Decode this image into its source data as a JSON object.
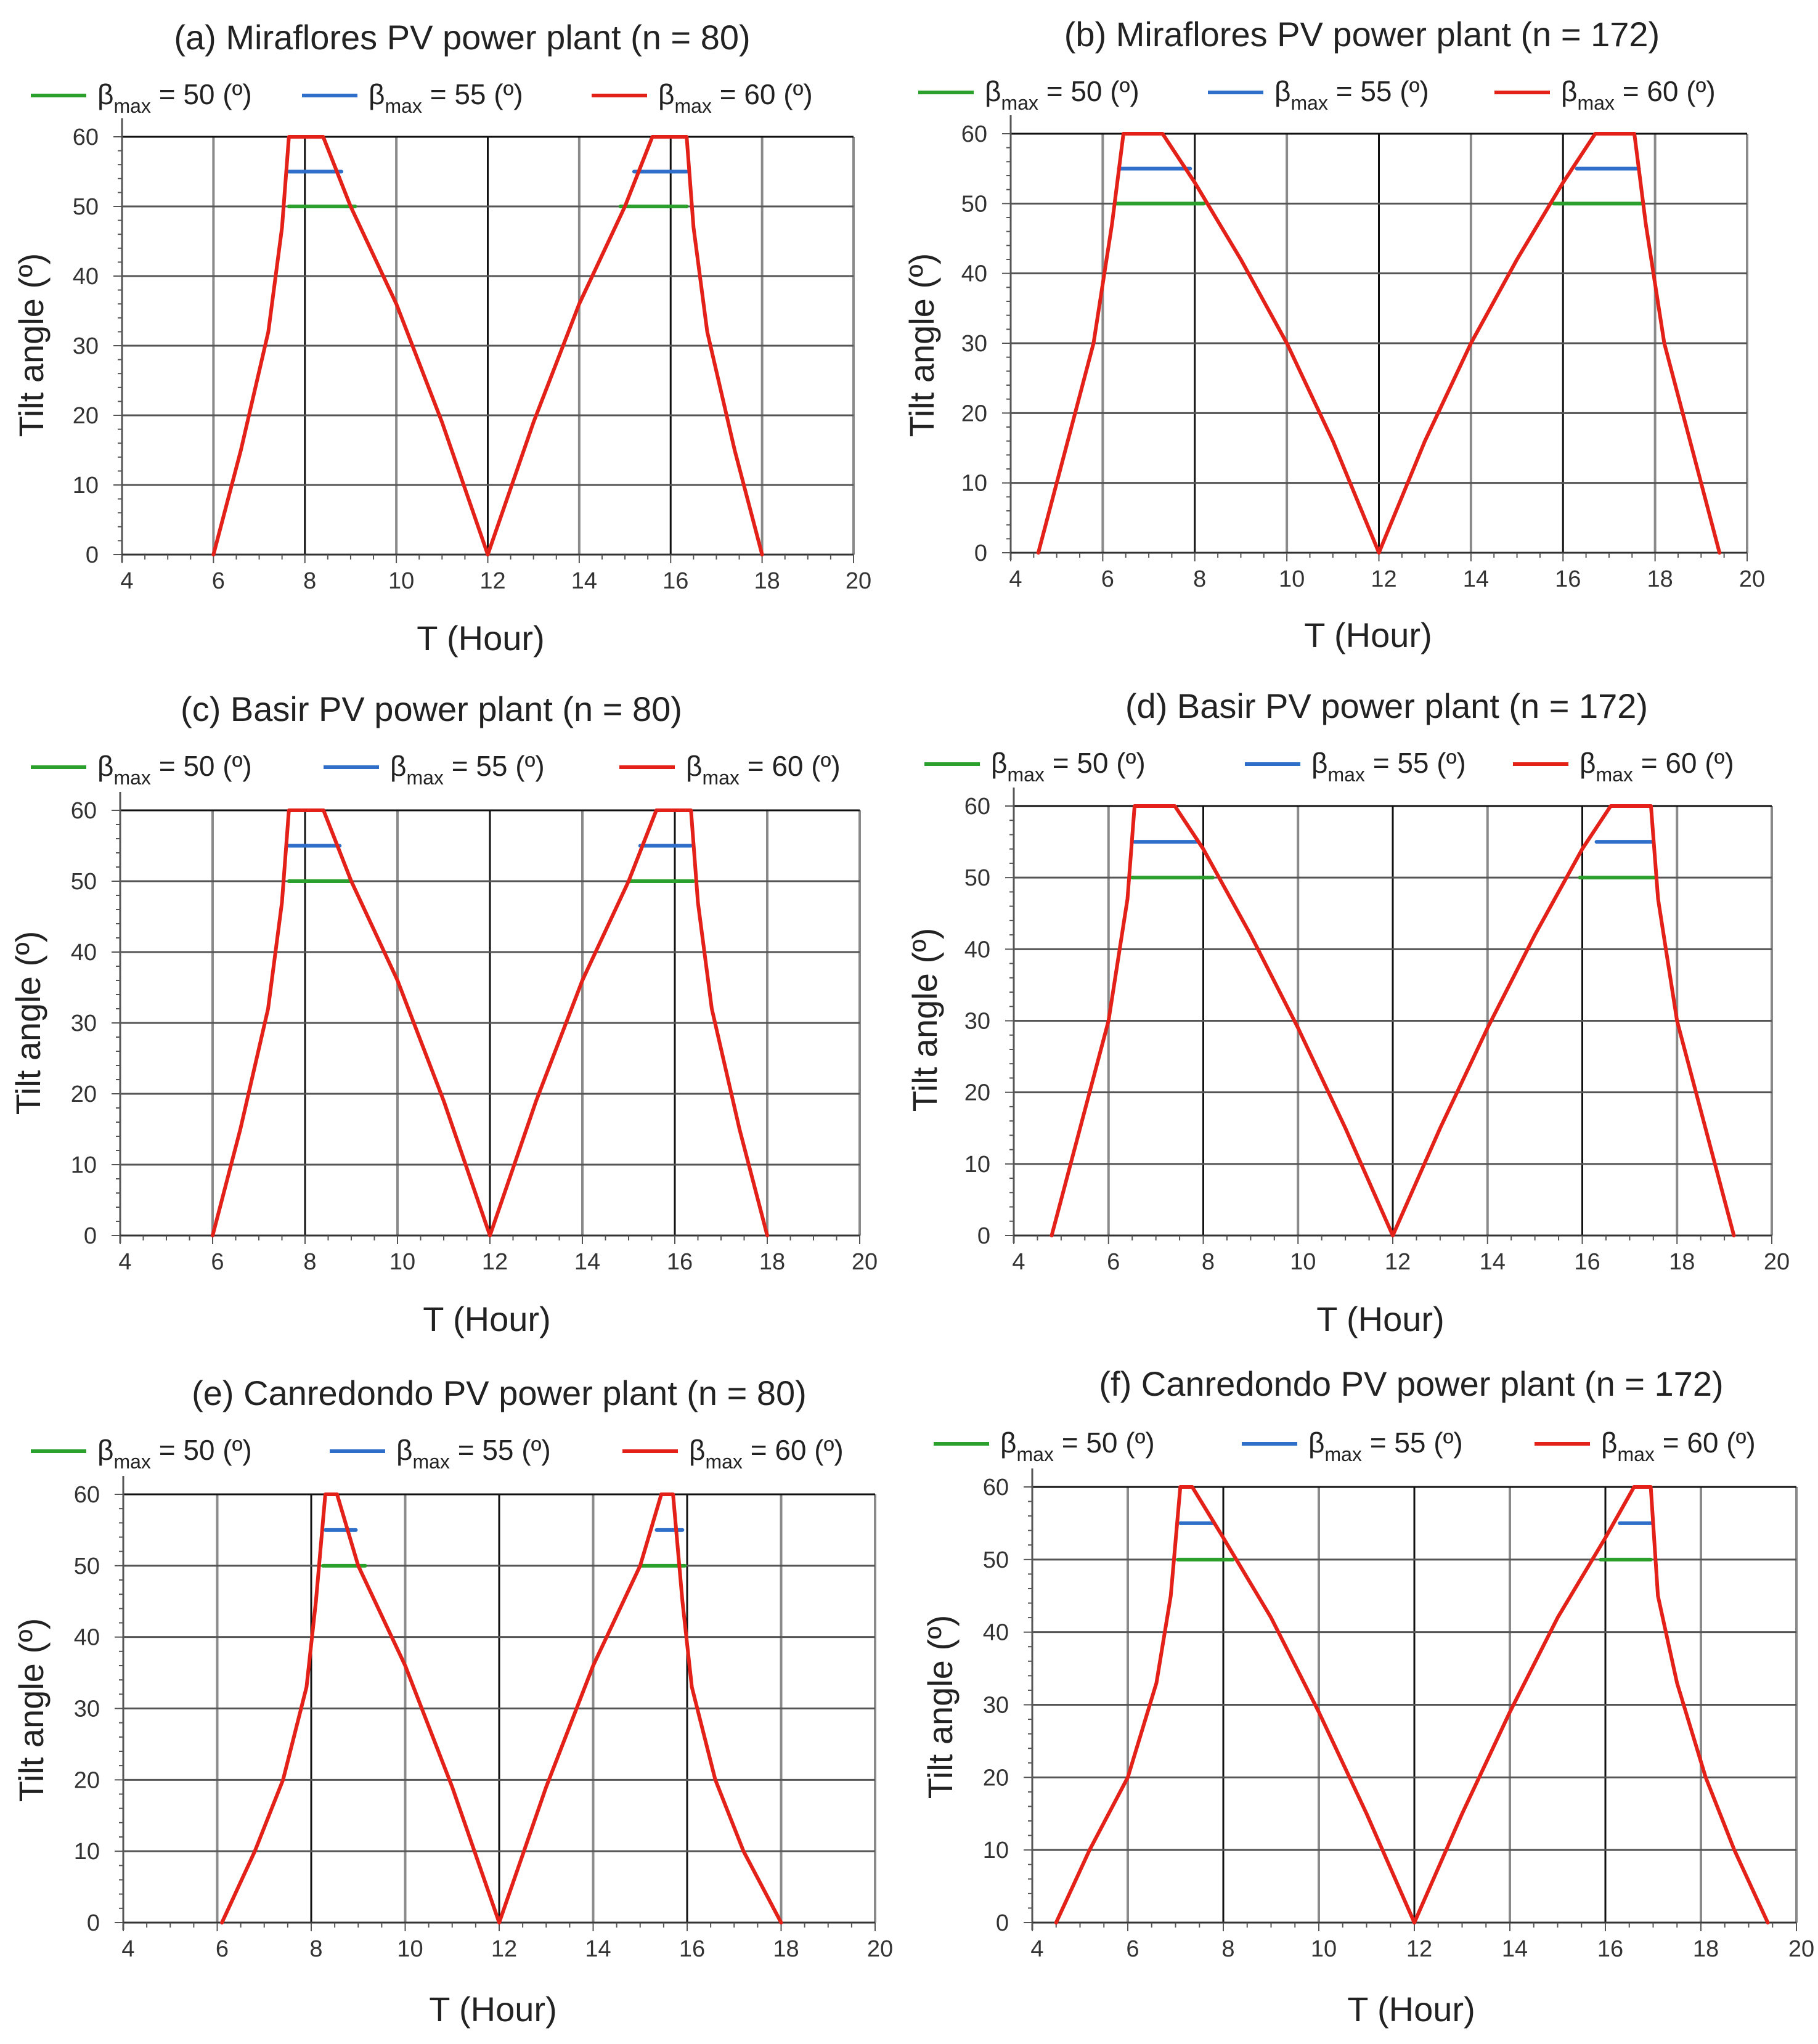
{
  "colors": {
    "beta50": "#2ca02c",
    "beta55": "#2f6fc9",
    "beta60": "#e32119",
    "grid": "#8a8a8a",
    "frame": "#111111"
  },
  "legend_items": [
    {
      "prefix": "β",
      "sub": "max",
      "rest": " = 50 (º)",
      "color_key": "beta50"
    },
    {
      "prefix": "β",
      "sub": "max",
      "rest": " = 55 (º)",
      "color_key": "beta55"
    },
    {
      "prefix": "β",
      "sub": "max",
      "rest": " = 60 (º)",
      "color_key": "beta60"
    }
  ],
  "chart_data": [
    {
      "type": "line",
      "title": "(a) Miraflores PV power plant (n = 80)",
      "xlabel": "T (Hour)",
      "ylabel": "Tilt angle (º)",
      "xlim": [
        4,
        20
      ],
      "ylim": [
        0,
        60
      ],
      "xticks": [
        4,
        6,
        8,
        10,
        12,
        14,
        16,
        18,
        20
      ],
      "yticks": [
        0,
        10,
        20,
        30,
        40,
        50,
        60
      ],
      "grid": true,
      "series": [
        {
          "name": "βmax = 60 (º)",
          "color_key": "beta60",
          "x": [
            6.0,
            6.6,
            7.2,
            7.5,
            7.65,
            8.4,
            9.0,
            10.0,
            11.0,
            12.0,
            13.0,
            14.0,
            15.0,
            15.6,
            16.35,
            16.5,
            16.8,
            17.4,
            18.0
          ],
          "y": [
            0,
            15,
            32,
            47,
            60,
            60,
            50,
            36,
            19,
            0,
            19,
            36,
            50,
            60,
            60,
            47,
            32,
            15,
            0
          ]
        },
        {
          "name": "βmax = 55 (º)",
          "color_key": "beta55",
          "x": [
            7.65,
            8.8
          ],
          "y": [
            55,
            55
          ],
          "x2": [
            15.2,
            16.35
          ],
          "y2": [
            55,
            55
          ]
        },
        {
          "name": "βmax = 50 (º)",
          "color_key": "beta50",
          "x": [
            7.65,
            9.1
          ],
          "y": [
            50,
            50
          ],
          "x2": [
            14.9,
            16.35
          ],
          "y2": [
            50,
            50
          ]
        }
      ]
    },
    {
      "type": "line",
      "title": "(b) Miraflores PV power plant (n = 172)",
      "xlabel": "T (Hour)",
      "ylabel": "Tilt angle (º)",
      "xlim": [
        4,
        20
      ],
      "ylim": [
        0,
        60
      ],
      "xticks": [
        4,
        6,
        8,
        10,
        12,
        14,
        16,
        18,
        20
      ],
      "yticks": [
        0,
        10,
        20,
        30,
        40,
        50,
        60
      ],
      "grid": true,
      "series": [
        {
          "name": "βmax = 60 (º)",
          "color_key": "beta60",
          "x": [
            4.6,
            5.2,
            5.8,
            6.2,
            6.45,
            7.3,
            8.0,
            9.0,
            10.0,
            11.0,
            12.0,
            13.0,
            14.0,
            15.0,
            16.0,
            16.7,
            17.55,
            17.8,
            18.2,
            18.8,
            19.4
          ],
          "y": [
            0,
            15,
            30,
            47,
            60,
            60,
            53,
            42,
            30,
            16,
            0,
            16,
            30,
            42,
            53,
            60,
            60,
            47,
            30,
            15,
            0
          ]
        },
        {
          "name": "βmax = 55 (º)",
          "color_key": "beta55",
          "x": [
            6.35,
            7.9
          ],
          "y": [
            55,
            55
          ],
          "x2": [
            16.3,
            17.65
          ],
          "y2": [
            55,
            55
          ]
        },
        {
          "name": "βmax = 50 (º)",
          "color_key": "beta50",
          "x": [
            6.3,
            8.2
          ],
          "y": [
            50,
            50
          ],
          "x2": [
            15.8,
            17.7
          ],
          "y2": [
            50,
            50
          ]
        }
      ]
    },
    {
      "type": "line",
      "title": "(c) Basir PV power plant (n = 80)",
      "xlabel": "T (Hour)",
      "ylabel": "Tilt angle (º)",
      "xlim": [
        4,
        20
      ],
      "ylim": [
        0,
        60
      ],
      "xticks": [
        4,
        6,
        8,
        10,
        12,
        14,
        16,
        18,
        20
      ],
      "yticks": [
        0,
        10,
        20,
        30,
        40,
        50,
        60
      ],
      "grid": true,
      "series": [
        {
          "name": "βmax = 60 (º)",
          "color_key": "beta60",
          "x": [
            6.0,
            6.6,
            7.2,
            7.5,
            7.65,
            8.4,
            9.0,
            10.0,
            11.0,
            12.0,
            13.0,
            14.0,
            15.0,
            15.6,
            16.35,
            16.5,
            16.8,
            17.4,
            18.0
          ],
          "y": [
            0,
            15,
            32,
            47,
            60,
            60,
            50,
            36,
            19,
            0,
            19,
            36,
            50,
            60,
            60,
            47,
            32,
            15,
            0
          ]
        },
        {
          "name": "βmax = 55 (º)",
          "color_key": "beta55",
          "x": [
            7.65,
            8.75
          ],
          "y": [
            55,
            55
          ],
          "x2": [
            15.25,
            16.35
          ],
          "y2": [
            55,
            55
          ]
        },
        {
          "name": "βmax = 50 (º)",
          "color_key": "beta50",
          "x": [
            7.65,
            9.0
          ],
          "y": [
            50,
            50
          ],
          "x2": [
            15.0,
            16.4
          ],
          "y2": [
            50,
            50
          ]
        }
      ]
    },
    {
      "type": "line",
      "title": "(d) Basir PV power plant (n = 172)",
      "xlabel": "T (Hour)",
      "ylabel": "Tilt angle (º)",
      "xlim": [
        4,
        20
      ],
      "ylim": [
        0,
        60
      ],
      "xticks": [
        4,
        6,
        8,
        10,
        12,
        14,
        16,
        18,
        20
      ],
      "yticks": [
        0,
        10,
        20,
        30,
        40,
        50,
        60
      ],
      "grid": true,
      "series": [
        {
          "name": "βmax = 60 (º)",
          "color_key": "beta60",
          "x": [
            4.8,
            5.4,
            6.0,
            6.4,
            6.55,
            7.4,
            8.0,
            9.0,
            10.0,
            11.0,
            12.0,
            13.0,
            14.0,
            15.0,
            16.0,
            16.6,
            17.45,
            17.6,
            18.0,
            18.6,
            19.2
          ],
          "y": [
            0,
            15,
            30,
            47,
            60,
            60,
            54,
            42,
            29,
            15,
            0,
            15,
            29,
            42,
            54,
            60,
            60,
            47,
            30,
            15,
            0
          ]
        },
        {
          "name": "βmax = 55 (º)",
          "color_key": "beta55",
          "x": [
            6.55,
            7.9
          ],
          "y": [
            55,
            55
          ],
          "x2": [
            16.3,
            17.5
          ],
          "y2": [
            55,
            55
          ]
        },
        {
          "name": "βmax = 50 (º)",
          "color_key": "beta50",
          "x": [
            6.5,
            8.2
          ],
          "y": [
            50,
            50
          ],
          "x2": [
            15.95,
            17.55
          ],
          "y2": [
            50,
            50
          ]
        }
      ]
    },
    {
      "type": "line",
      "title": "(e) Canredondo PV power plant (n = 80)",
      "xlabel": "T (Hour)",
      "ylabel": "Tilt angle (º)",
      "xlim": [
        4,
        20
      ],
      "ylim": [
        0,
        60
      ],
      "xticks": [
        4,
        6,
        8,
        10,
        12,
        14,
        16,
        18,
        20
      ],
      "yticks": [
        0,
        10,
        20,
        30,
        40,
        50,
        60
      ],
      "grid": true,
      "series": [
        {
          "name": "βmax = 60 (º)",
          "color_key": "beta60",
          "x": [
            6.1,
            6.8,
            7.4,
            7.9,
            8.1,
            8.3,
            8.55,
            9.0,
            10.0,
            11.0,
            12.0,
            13.0,
            14.0,
            15.0,
            15.45,
            15.7,
            15.9,
            16.1,
            16.6,
            17.2,
            18.0
          ],
          "y": [
            0,
            10,
            20,
            33,
            45,
            60,
            60,
            50,
            36,
            19,
            0,
            19,
            36,
            50,
            60,
            60,
            45,
            33,
            20,
            10,
            0
          ]
        },
        {
          "name": "βmax = 55 (º)",
          "color_key": "beta55",
          "x": [
            8.3,
            8.95
          ],
          "y": [
            55,
            55
          ],
          "x2": [
            15.35,
            15.9
          ],
          "y2": [
            55,
            55
          ]
        },
        {
          "name": "βmax = 50 (º)",
          "color_key": "beta50",
          "x": [
            8.25,
            9.15
          ],
          "y": [
            50,
            50
          ],
          "x2": [
            15.0,
            15.95
          ],
          "y2": [
            50,
            50
          ]
        }
      ]
    },
    {
      "type": "line",
      "title": "(f) Canredondo PV power plant (n = 172)",
      "xlabel": "T (Hour)",
      "ylabel": "Tilt angle (º)",
      "xlim": [
        4,
        20
      ],
      "ylim": [
        0,
        60
      ],
      "xticks": [
        4,
        6,
        8,
        10,
        12,
        14,
        16,
        18,
        20
      ],
      "yticks": [
        0,
        10,
        20,
        30,
        40,
        50,
        60
      ],
      "grid": true,
      "series": [
        {
          "name": "βmax = 60 (º)",
          "color_key": "beta60",
          "x": [
            4.5,
            5.2,
            6.0,
            6.6,
            6.9,
            7.1,
            7.35,
            8.0,
            9.0,
            10.0,
            11.0,
            12.0,
            13.0,
            14.0,
            15.0,
            16.0,
            16.6,
            16.95,
            17.1,
            17.5,
            18.1,
            18.7,
            19.4
          ],
          "y": [
            0,
            10,
            20,
            33,
            45,
            60,
            60,
            53,
            42,
            29,
            15,
            0,
            15,
            29,
            42,
            53,
            60,
            60,
            45,
            33,
            20,
            10,
            0
          ]
        },
        {
          "name": "βmax = 55 (º)",
          "color_key": "beta55",
          "x": [
            7.1,
            7.8
          ],
          "y": [
            55,
            55
          ],
          "x2": [
            16.3,
            16.95
          ],
          "y2": [
            55,
            55
          ]
        },
        {
          "name": "βmax = 50 (º)",
          "color_key": "beta50",
          "x": [
            7.05,
            8.2
          ],
          "y": [
            50,
            50
          ],
          "x2": [
            15.9,
            16.95
          ],
          "y2": [
            50,
            50
          ]
        }
      ]
    }
  ]
}
